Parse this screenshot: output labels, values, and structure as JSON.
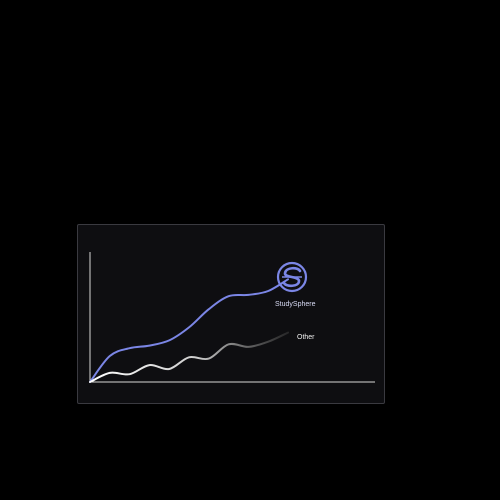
{
  "chart_data": {
    "type": "line",
    "title": "",
    "xlabel": "",
    "ylabel": "",
    "grid": false,
    "legend": "inline end-of-line labels",
    "x": [
      0,
      1,
      2,
      3,
      4,
      5,
      6,
      7,
      8,
      9,
      10
    ],
    "series": [
      {
        "name": "StudySphere",
        "color": "#7b86e6",
        "values": [
          0,
          20,
          26,
          28,
          32,
          42,
          56,
          66,
          67,
          70,
          79
        ]
      },
      {
        "name": "Other",
        "color": "#ffffff",
        "values": [
          0,
          7,
          6,
          13,
          10,
          19,
          18,
          29,
          27,
          31,
          38
        ]
      }
    ],
    "ylim": [
      0,
      100
    ],
    "xlim": [
      0,
      10
    ],
    "logo_icon": "studysphere-s-logo-icon"
  }
}
